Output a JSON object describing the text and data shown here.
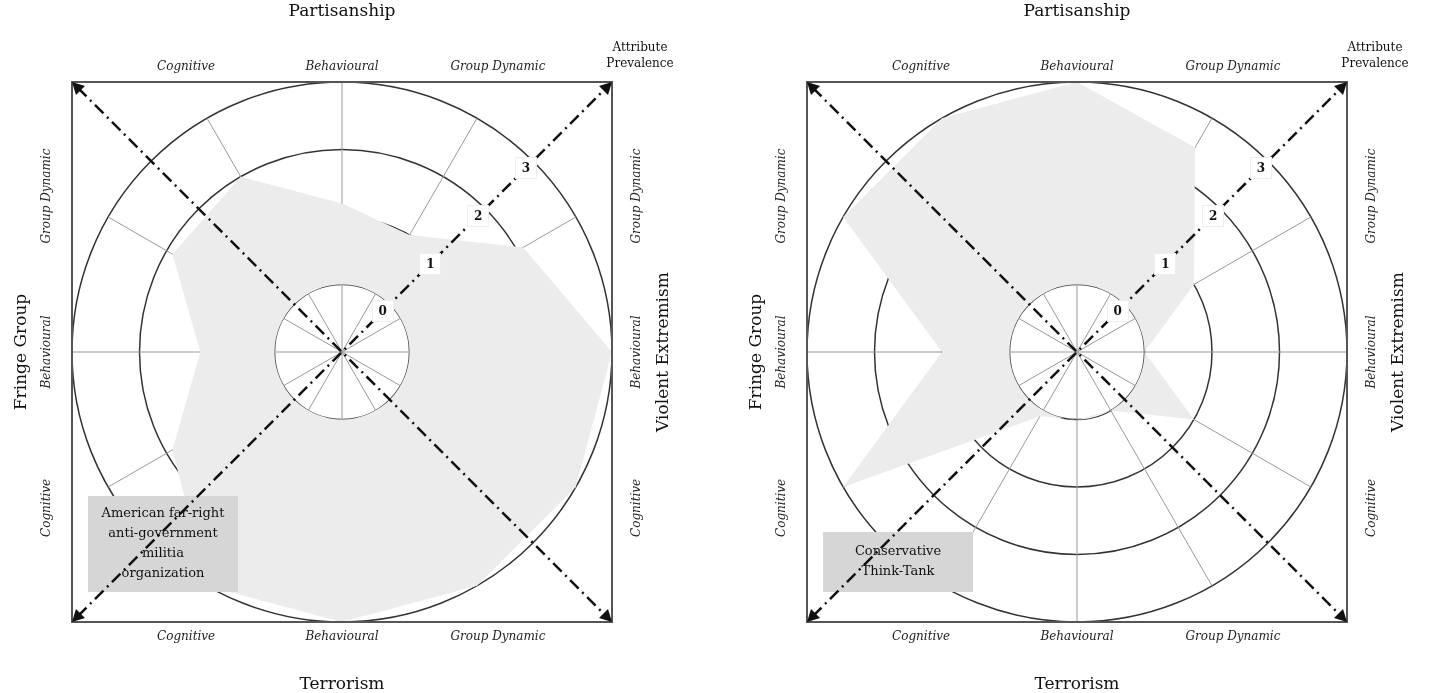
{
  "chart_data": [
    {
      "type": "radar",
      "title": "American far-right anti-government militia organization",
      "ylabel": "Attribute Prevalence",
      "categories": [
        "Behavioural",
        "Group Dynamic",
        "Group Dynamic",
        "Behavioural",
        "Cognitive",
        "Group Dynamic",
        "Behavioural",
        "Cognitive",
        "Cognitive",
        "Behavioural",
        "Group Dynamic",
        "Cognitive"
      ],
      "series": [
        {
          "color": "#ececec",
          "values": [
            1.2,
            1.0,
            2.1,
            3,
            3,
            3,
            3,
            3,
            1.9,
            1.1,
            1.9,
            2.0
          ]
        }
      ],
      "ylim": [
        -1,
        3
      ],
      "yticks": [
        0,
        1,
        2,
        3
      ],
      "grid": true,
      "marker": "none",
      "annotations": [
        "Partisanship",
        "Violent Extremism",
        "Terrorism",
        "Fringe Group"
      ]
    },
    {
      "type": "radar",
      "title": "Conservative Think-Tank",
      "ylabel": "Attribute Prevalence",
      "categories": [
        "Behavioural",
        "Group Dynamic",
        "Group Dynamic",
        "Behavioural",
        "Cognitive",
        "Group Dynamic",
        "Behavioural",
        "Cognitive",
        "Cognitive",
        "Behavioural",
        "Group Dynamic",
        "Cognitive"
      ],
      "series": [
        {
          "color": "#ececec",
          "values": [
            3,
            2.5,
            1.0,
            0,
            1.0,
            0,
            0,
            0.1,
            3,
            1.0,
            3,
            3
          ]
        }
      ],
      "ylim": [
        -1,
        3
      ],
      "yticks": [
        0,
        1,
        2,
        3
      ],
      "grid": true,
      "marker": "none",
      "annotations": [
        "Partisanship",
        "Violent Extremism",
        "Terrorism",
        "Fringe Group"
      ]
    }
  ]
}
